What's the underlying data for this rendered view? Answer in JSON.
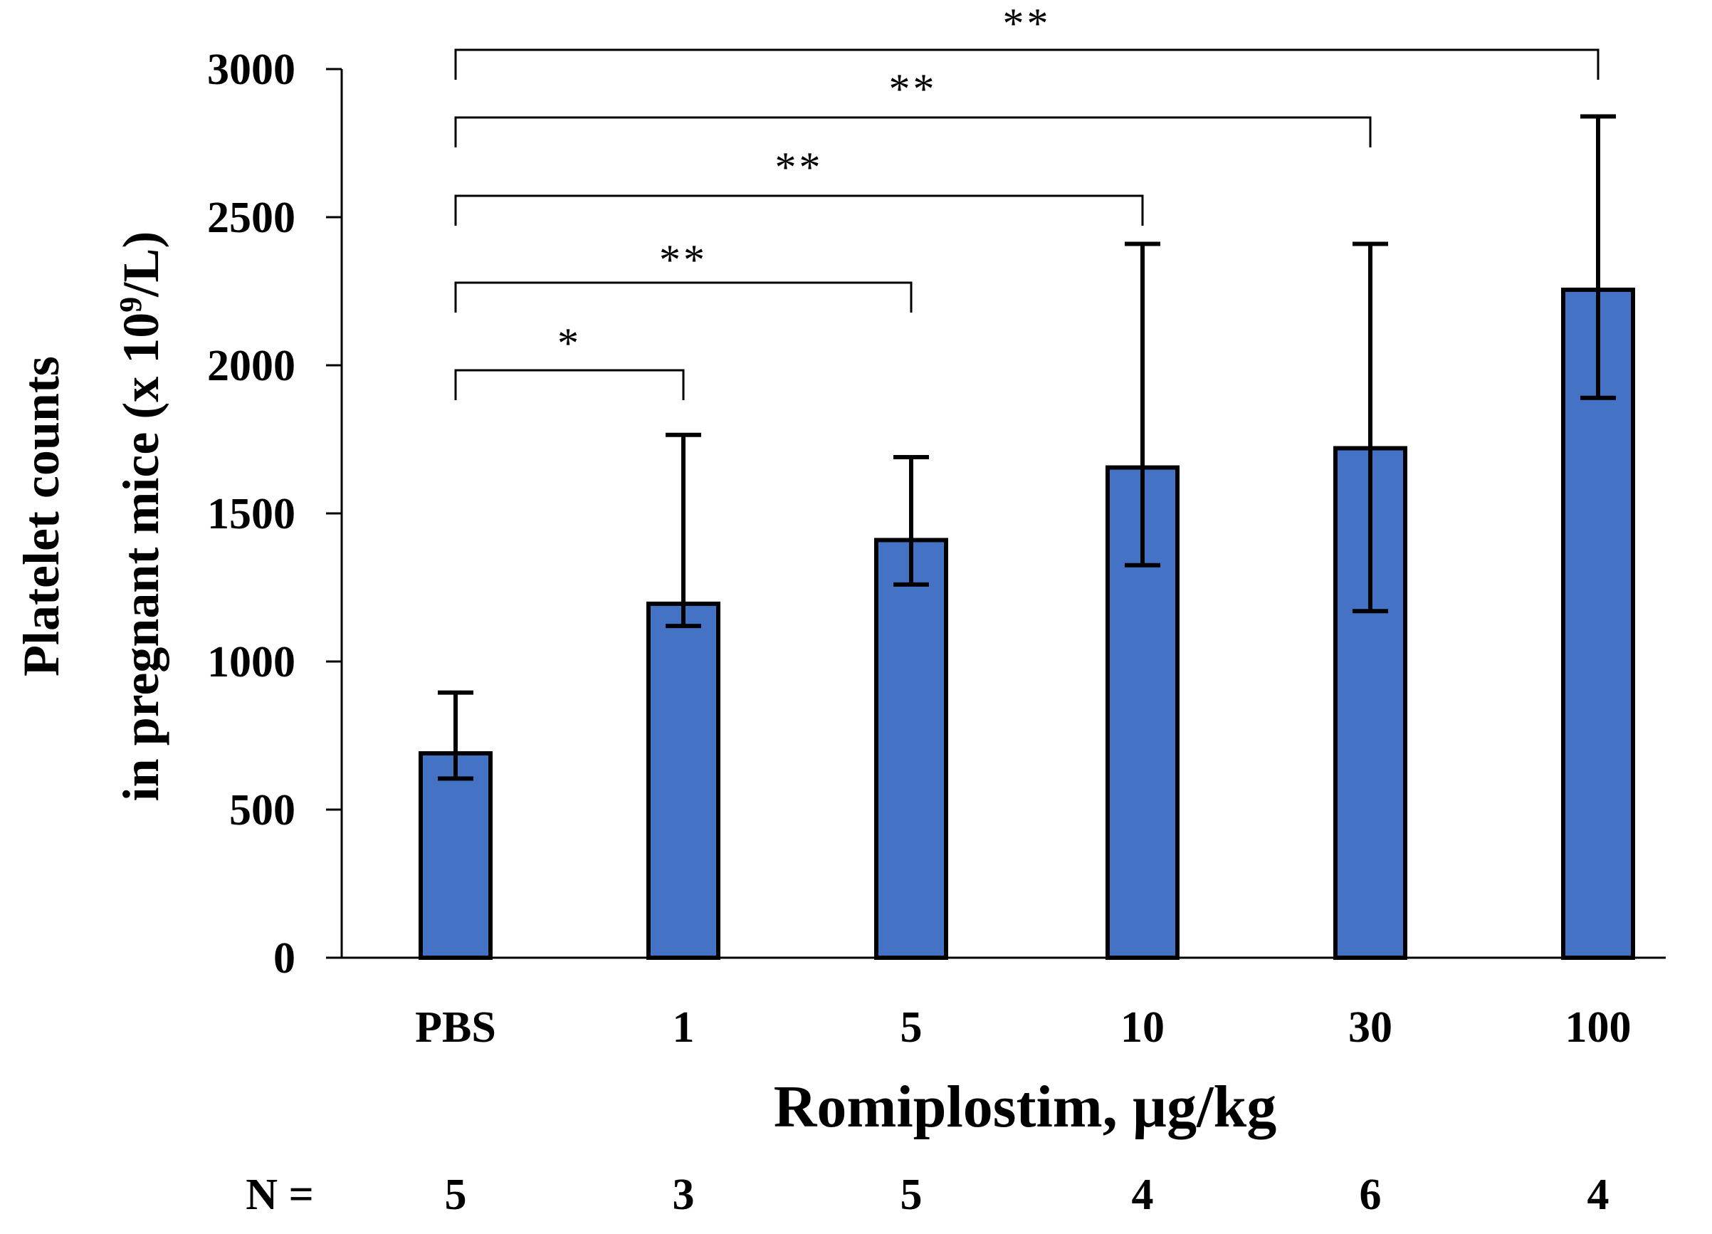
{
  "chart_data": {
    "type": "bar",
    "categories": [
      "PBS",
      "1",
      "5",
      "10",
      "30",
      "100"
    ],
    "values": [
      690,
      1195,
      1410,
      1655,
      1720,
      2255
    ],
    "error_upper": [
      895,
      1765,
      1690,
      2410,
      2410,
      2840
    ],
    "error_lower": [
      605,
      1120,
      1260,
      1325,
      1170,
      1890
    ],
    "bar_color": "#4472C4",
    "ylim": [
      0,
      3000
    ],
    "yticks": [
      0,
      500,
      1000,
      1500,
      2000,
      2500,
      3000
    ],
    "ylabel_line1": "Platelet counts",
    "ylabel_line2_pre": "in pregnant mice (x 10",
    "ylabel_sup": "9",
    "ylabel_line2_post": "/L)",
    "xlabel": "Romiplostim, µg/kg",
    "n_label": "N =",
    "n_values": [
      "5",
      "3",
      "5",
      "4",
      "6",
      "4"
    ],
    "significance": [
      {
        "from": "PBS",
        "to": "1",
        "label": "*"
      },
      {
        "from": "PBS",
        "to": "5",
        "label": "**"
      },
      {
        "from": "PBS",
        "to": "10",
        "label": "**"
      },
      {
        "from": "PBS",
        "to": "30",
        "label": "**"
      },
      {
        "from": "PBS",
        "to": "100",
        "label": "**"
      }
    ]
  }
}
